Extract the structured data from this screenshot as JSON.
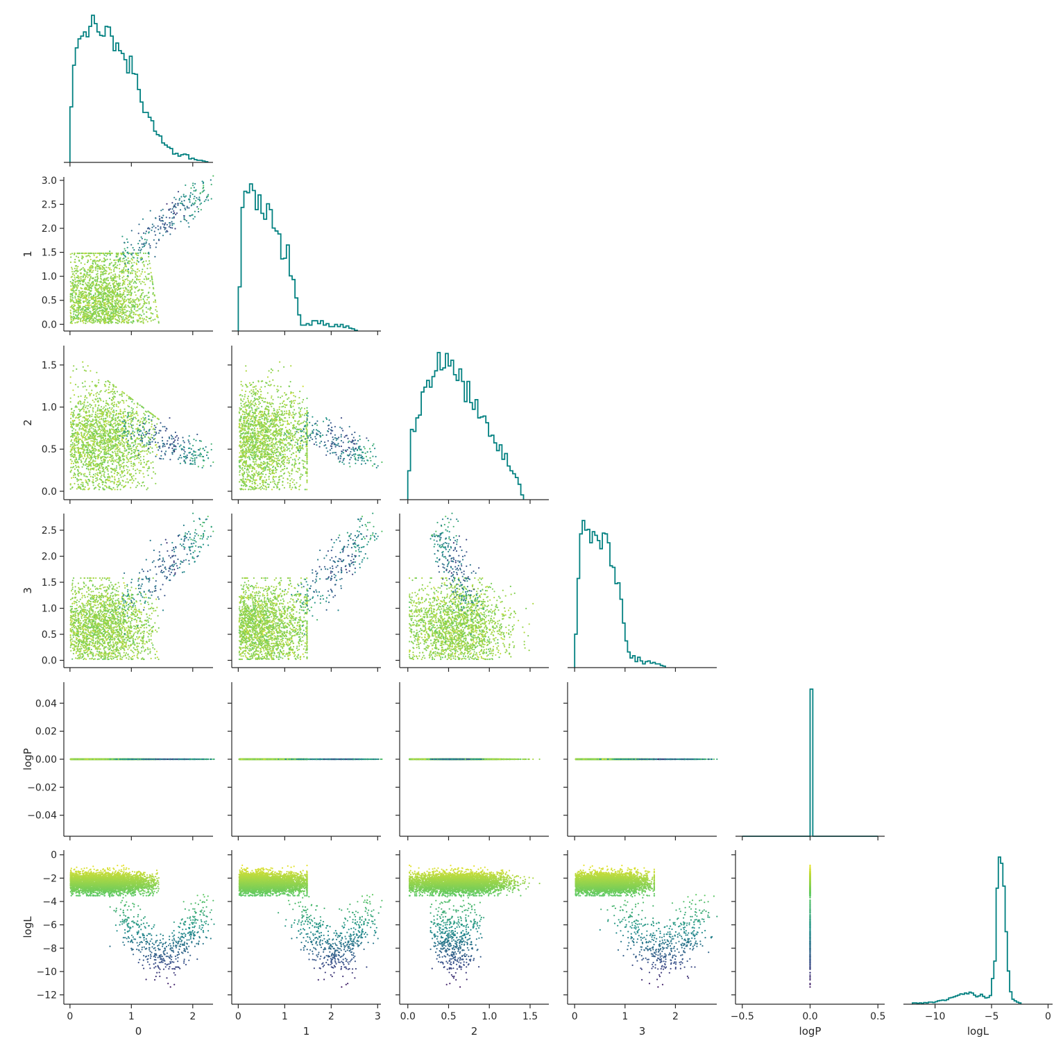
{
  "chart_data": {
    "type": "scatter",
    "layout": "corner-pairplot",
    "variables": [
      "0",
      "1",
      "2",
      "3",
      "logP",
      "logL"
    ],
    "hist_color": "#008080",
    "colormap": "viridis",
    "color_by": "logL",
    "diagonal_type": "step-histogram",
    "grid": false,
    "axes": {
      "0": {
        "range": [
          -0.1,
          2.33
        ],
        "ticks": [
          0,
          1,
          2
        ],
        "tick_labels": [
          "0",
          "1",
          "2"
        ]
      },
      "1": {
        "range": [
          -0.14,
          3.07
        ],
        "ticks": [
          0,
          1,
          2,
          3
        ],
        "tick_labels": [
          "0",
          "1",
          "2",
          "3"
        ],
        "row_ticks": [
          0,
          0.5,
          1,
          1.5,
          2,
          2.5,
          3
        ],
        "row_tick_labels": [
          "0.0",
          "0.5",
          "1.0",
          "1.5",
          "2.0",
          "2.5",
          "3.0"
        ]
      },
      "2": {
        "range": [
          -0.1,
          1.73
        ],
        "ticks": [
          0,
          0.5,
          1,
          1.5
        ],
        "tick_labels": [
          "0.0",
          "0.5",
          "1.0",
          "1.5"
        ],
        "row_ticks": [
          0,
          0.5,
          1,
          1.5
        ],
        "row_tick_labels": [
          "0.0",
          "0.5",
          "1.0",
          "1.5"
        ]
      },
      "3": {
        "range": [
          -0.14,
          2.82
        ],
        "ticks": [
          0,
          1,
          2
        ],
        "tick_labels": [
          "0",
          "1",
          "2"
        ],
        "row_ticks": [
          0,
          0.5,
          1,
          1.5,
          2,
          2.5
        ],
        "row_tick_labels": [
          "0.0",
          "0.5",
          "1.0",
          "1.5",
          "2.0",
          "2.5"
        ]
      },
      "logP": {
        "range": [
          -0.055,
          0.055
        ],
        "ticks": [
          -0.5,
          0,
          0.5
        ],
        "tick_labels": [
          "−0.5",
          "0.0",
          "0.5"
        ],
        "col_range": [
          -0.55,
          0.55
        ],
        "row_ticks": [
          -0.04,
          -0.02,
          0,
          0.02,
          0.04
        ],
        "row_tick_labels": [
          "−0.04",
          "−0.02",
          "0.00",
          "0.02",
          "0.04"
        ]
      },
      "logL": {
        "range": [
          -12.8,
          0.4
        ],
        "ticks": [
          -10,
          -5,
          0
        ],
        "tick_labels": [
          "−10",
          "−5",
          "0"
        ],
        "row_ticks": [
          -12,
          -10,
          -8,
          -6,
          -4,
          -2,
          0
        ],
        "row_tick_labels": [
          "−12",
          "−10",
          "−8",
          "−6",
          "−4",
          "−2",
          "0"
        ]
      }
    },
    "histograms": [
      {
        "variable": "0",
        "bins": {
          "start": 0.0,
          "width": 0.044
        },
        "counts": [
          80,
          140,
          165,
          178,
          182,
          188,
          181,
          196,
          212,
          200,
          188,
          183,
          182,
          196,
          195,
          182,
          161,
          172,
          161,
          157,
          148,
          129,
          153,
          128,
          127,
          105,
          87,
          72,
          72,
          65,
          60,
          45,
          40,
          38,
          28,
          25,
          22,
          20,
          12,
          13,
          9,
          11,
          12,
          11,
          5,
          6,
          4,
          3,
          3,
          2,
          1
        ]
      },
      {
        "variable": "1",
        "bins": {
          "start": 0.0,
          "width": 0.061
        },
        "counts": [
          60,
          168,
          190,
          188,
          200,
          191,
          165,
          185,
          160,
          152,
          173,
          165,
          140,
          136,
          132,
          98,
          99,
          117,
          75,
          70,
          45,
          22,
          8,
          8,
          10,
          8,
          14,
          14,
          10,
          14,
          8,
          10,
          6,
          6,
          9,
          6,
          9,
          5,
          7,
          4,
          3,
          1
        ]
      },
      {
        "variable": "2",
        "bins": {
          "start": 0.0,
          "width": 0.033
        },
        "counts": [
          30,
          73,
          71,
          85,
          88,
          112,
          117,
          124,
          117,
          128,
          134,
          153,
          135,
          137,
          152,
          139,
          145,
          130,
          124,
          136,
          123,
          102,
          123,
          101,
          94,
          104,
          85,
          86,
          87,
          80,
          66,
          67,
          59,
          51,
          57,
          42,
          48,
          35,
          30,
          27,
          23,
          16,
          5
        ]
      },
      {
        "variable": "3",
        "bins": {
          "start": 0.0,
          "width": 0.05
        },
        "counts": [
          45,
          120,
          180,
          198,
          185,
          186,
          168,
          183,
          178,
          171,
          160,
          181,
          180,
          168,
          137,
          135,
          113,
          114,
          92,
          60,
          36,
          21,
          13,
          16,
          8,
          14,
          9,
          5,
          8,
          9,
          6,
          7,
          5,
          5,
          3,
          2
        ]
      },
      {
        "variable": "logP",
        "bins": {
          "start": -0.5,
          "width": 0.02
        },
        "counts": [
          0,
          0,
          0,
          0,
          0,
          0,
          0,
          0,
          0,
          0,
          0,
          0,
          0,
          0,
          0,
          0,
          0,
          0,
          0,
          0,
          0,
          0,
          0,
          0,
          0,
          1000,
          0,
          0,
          0,
          0,
          0,
          0,
          0,
          0,
          0,
          0,
          0,
          0,
          0,
          0,
          0,
          0,
          0,
          0,
          0,
          0,
          0,
          0,
          0,
          0
        ]
      },
      {
        "variable": "logL",
        "bins": {
          "start": -12.0,
          "width": 0.2
        },
        "counts": [
          3,
          3,
          2,
          3,
          2,
          4,
          3,
          5,
          5,
          4,
          6,
          8,
          9,
          10,
          9,
          11,
          15,
          16,
          18,
          20,
          22,
          25,
          24,
          27,
          25,
          29,
          27,
          22,
          18,
          20,
          24,
          19,
          15,
          16,
          21,
          62,
          104,
          280,
          355,
          340,
          285,
          175,
          80,
          30,
          12,
          8,
          5,
          3
        ]
      }
    ],
    "scatter": {
      "description_of_points": "approx. 5000 posterior samples; main cluster with logL in [-3.5,-1], tail to logL -12",
      "point_colors": [
        "#440154",
        "#3b528b",
        "#21918c",
        "#5ec962",
        "#c8e020",
        "#fde725"
      ]
    }
  }
}
